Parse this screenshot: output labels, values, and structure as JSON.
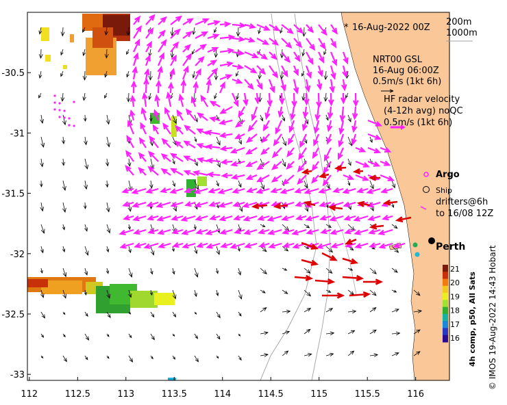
{
  "map": {
    "date_label": "16-Aug-2022 00Z",
    "contour_labels": [
      "200m",
      "1000m"
    ],
    "model_label": [
      "NRT00 GSL",
      "16-Aug 06:00Z",
      "0.5m/s (1kt 6h)"
    ],
    "radar_label": [
      "HF radar velocity",
      "(4-12h avg) noQC",
      "0.5m/s (1kt 6h)"
    ],
    "legend": {
      "argo": "Argo",
      "ship": "Ship",
      "drifters": [
        "drifters@6h",
        "to 16/08 12Z"
      ]
    },
    "city": "Perth",
    "colorbar_title": "4h comp, p50, All Sats",
    "colorbar_ticks": [
      "21",
      "20",
      "19",
      "18",
      "17",
      "16"
    ],
    "colorbar_colors": [
      "#7a1a0a",
      "#c8300a",
      "#f07a10",
      "#f0c81e",
      "#e8f020",
      "#a0e030",
      "#30b030",
      "#18b0a0",
      "#1888d8",
      "#2838c0",
      "#2a0a90"
    ],
    "x_ticks": [
      "112",
      "112.5",
      "113",
      "113.5",
      "114",
      "114.5",
      "115",
      "115.5",
      "116"
    ],
    "y_ticks": [
      "-30.5",
      "-31",
      "-31.5",
      "-32",
      "-32.5",
      "-33"
    ],
    "credit": "© IMOS 19-Aug-2022 14:43 Hobart",
    "colors": {
      "land": "#fac898",
      "radar_vectors": "#ff20ff",
      "drifters": "#dd0000",
      "model_vectors": "#000000"
    },
    "extent": {
      "lon": [
        111.98,
        116.35
      ],
      "lat": [
        -33.05,
        -30.0
      ]
    }
  }
}
